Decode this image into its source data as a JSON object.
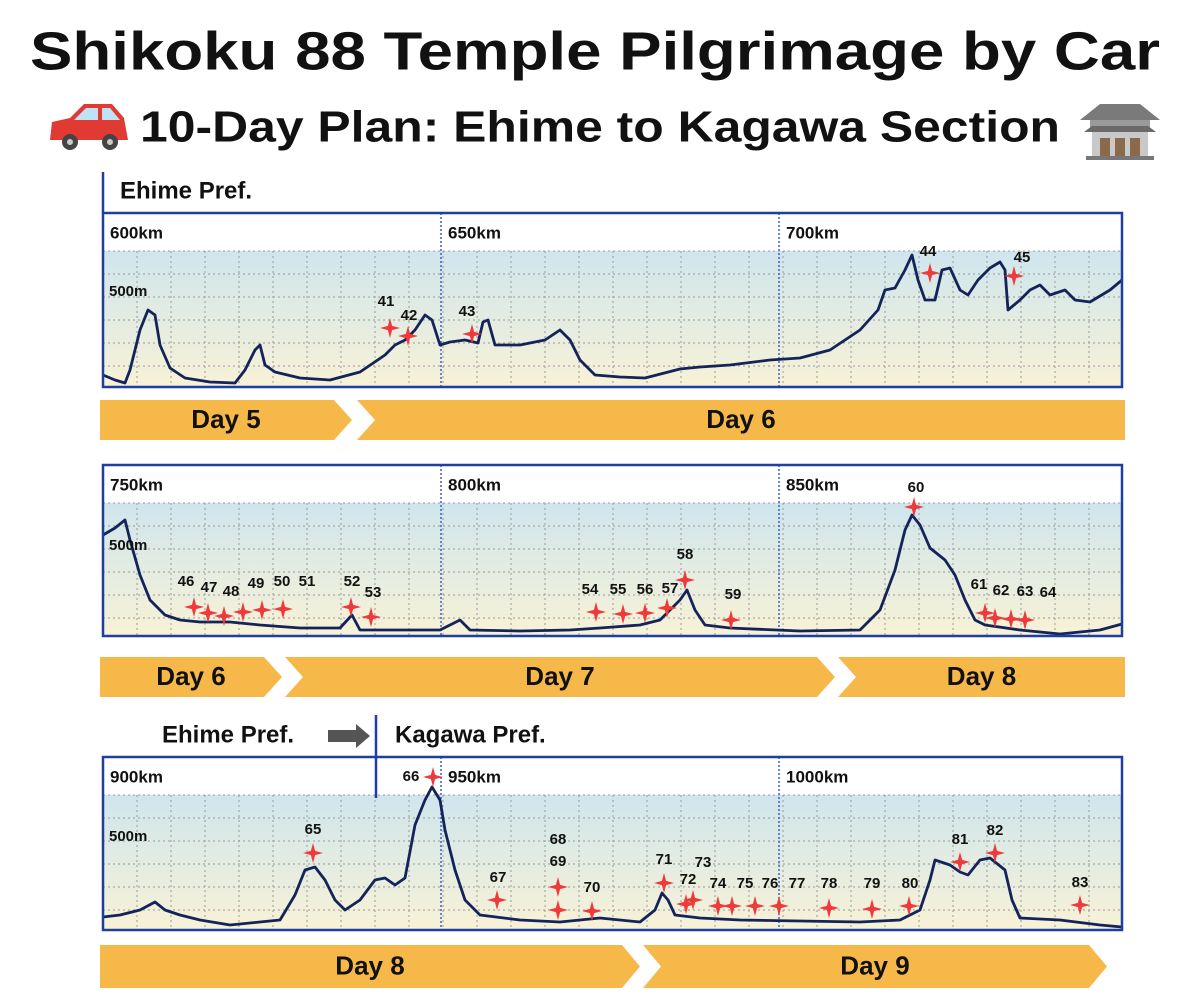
{
  "title": "Shikoku 88 Temple Pilgrimage by Car",
  "subtitle": "10-Day Plan: Ehime to Kagawa Section",
  "panels": [
    {
      "region_labels": [
        "Ehime Pref."
      ],
      "distance_labels": [
        "600km",
        "650km",
        "700km"
      ],
      "elevation_label": "500m",
      "temples": [
        "41",
        "42",
        "43",
        "44",
        "45"
      ],
      "days": [
        "Day 5",
        "Day 6"
      ]
    },
    {
      "region_labels": [],
      "distance_labels": [
        "750km",
        "800km",
        "850km"
      ],
      "elevation_label": "500m",
      "temples": [
        "46",
        "47",
        "48",
        "49",
        "50",
        "51",
        "52",
        "53",
        "54",
        "55",
        "56",
        "57",
        "58",
        "59",
        "60",
        "61",
        "62",
        "63",
        "64"
      ],
      "days": [
        "Day 6",
        "Day 7",
        "Day 8"
      ]
    },
    {
      "region_labels": [
        "Ehime Pref.",
        "Kagawa Pref."
      ],
      "distance_labels": [
        "900km",
        "950km",
        "1000km"
      ],
      "elevation_label": "500m",
      "temples": [
        "65",
        "66",
        "67",
        "68",
        "69",
        "70",
        "71",
        "72",
        "73",
        "74",
        "75",
        "76",
        "77",
        "78",
        "79",
        "80",
        "81",
        "82",
        "83"
      ],
      "days": [
        "Day 8",
        "Day 9"
      ]
    }
  ]
}
